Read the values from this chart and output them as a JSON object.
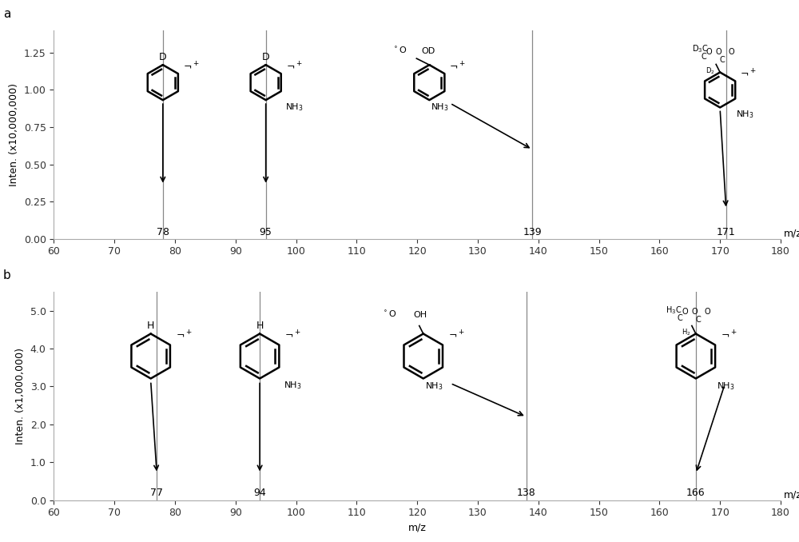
{
  "panel_a": {
    "label": "a",
    "ylabel": "Inten. (x10,000,000)",
    "xlim": [
      60,
      180
    ],
    "ylim": [
      0,
      1.4
    ],
    "yticks": [
      0.0,
      0.25,
      0.5,
      0.75,
      1.0,
      1.25
    ],
    "xticks": [
      60,
      70,
      80,
      90,
      100,
      110,
      120,
      130,
      140,
      150,
      160,
      170,
      180
    ],
    "xlabel": "",
    "peaks": [
      78,
      95,
      139,
      171
    ]
  },
  "panel_b": {
    "label": "b",
    "ylabel": "Inten. (x1,000,000)",
    "xlim": [
      60,
      180
    ],
    "ylim": [
      0,
      5.5
    ],
    "yticks": [
      0.0,
      1.0,
      2.0,
      3.0,
      4.0,
      5.0
    ],
    "xticks": [
      60,
      70,
      80,
      90,
      100,
      110,
      120,
      130,
      140,
      150,
      160,
      170,
      180
    ],
    "xlabel": "m/z",
    "peaks": [
      77,
      94,
      138,
      166
    ]
  },
  "line_color": "#888888",
  "background_color": "#ffffff"
}
